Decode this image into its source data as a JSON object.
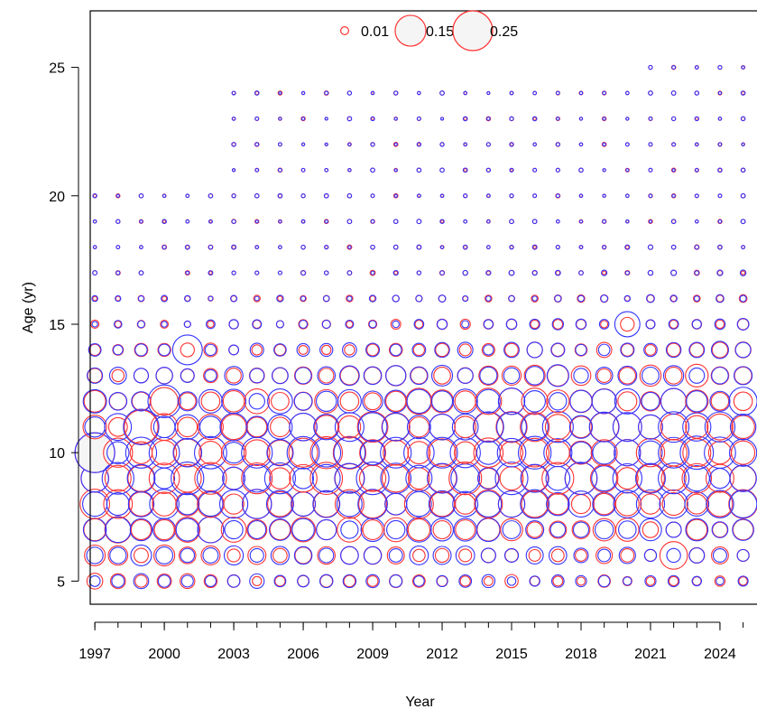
{
  "chart_data": {
    "type": "bubble",
    "title": "",
    "xlabel": "Year",
    "ylabel": "Age (yr)",
    "xlim": [
      1996.8,
      2025.6
    ],
    "ylim": [
      4.1,
      27.2
    ],
    "x_ticks": [
      1997,
      2000,
      2003,
      2006,
      2009,
      2012,
      2015,
      2018,
      2021,
      2024
    ],
    "y_ticks": [
      5,
      10,
      15,
      20,
      25
    ],
    "legend": {
      "position": "top",
      "entries": [
        {
          "label": "0.01",
          "value": 0.01
        },
        {
          "label": "0.15",
          "value": 0.15
        },
        {
          "label": "0.25",
          "value": 0.25
        }
      ]
    },
    "series": [
      {
        "color": "#ff3333"
      },
      {
        "color": "#3333ff"
      }
    ],
    "years": [
      1997,
      1998,
      1999,
      2000,
      2001,
      2002,
      2003,
      2004,
      2005,
      2006,
      2007,
      2008,
      2009,
      2010,
      2011,
      2012,
      2013,
      2014,
      2015,
      2016,
      2017,
      2018,
      2019,
      2020,
      2021,
      2022,
      2023,
      2024,
      2025
    ],
    "ages": [
      5,
      6,
      7,
      8,
      9,
      10,
      11,
      12,
      13,
      14,
      15,
      16,
      17,
      18,
      19,
      20,
      21,
      22,
      23,
      24,
      25
    ],
    "peak_cells": [
      {
        "year": 1997,
        "age": 10,
        "red": 0.25,
        "blue": 0.25
      },
      {
        "year": 1999,
        "age": 11,
        "red": 0.18,
        "blue": 0.2
      },
      {
        "year": 2000,
        "age": 12,
        "red": 0.12,
        "blue": 0.17
      },
      {
        "year": 2001,
        "age": 14,
        "red": 0.03,
        "blue": 0.14
      },
      {
        "year": 2004,
        "age": 9,
        "red": 0.15,
        "blue": 0.12
      },
      {
        "year": 2010,
        "age": 10,
        "red": 0.1,
        "blue": 0.15
      },
      {
        "year": 2016,
        "age": 10,
        "red": 0.13,
        "blue": 0.17
      },
      {
        "year": 2017,
        "age": 11,
        "red": 0.1,
        "blue": 0.15
      },
      {
        "year": 2020,
        "age": 15,
        "red": 0.03,
        "blue": 0.1
      },
      {
        "year": 2022,
        "age": 6,
        "red": 0.12,
        "blue": 0.03
      },
      {
        "year": 2025,
        "age": 8,
        "red": 0.13,
        "blue": 0.12
      }
    ]
  }
}
